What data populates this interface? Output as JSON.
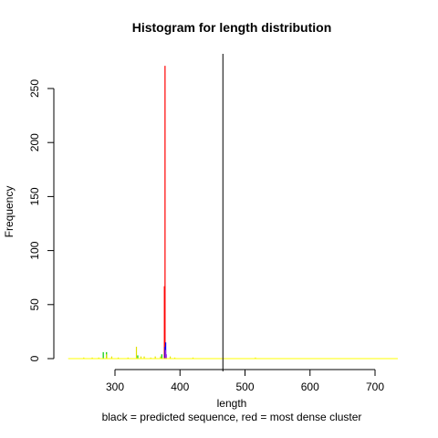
{
  "chart_data": {
    "type": "bar",
    "title": "Histogram for length distribution",
    "xlabel": "length",
    "subtitle": "black = predicted sequence, red = most dense cluster",
    "ylabel": "Frequency",
    "xlim": [
      225,
      735
    ],
    "ylim": [
      0,
      265
    ],
    "x_ticks": [
      300,
      400,
      500,
      600,
      700
    ],
    "y_ticks": [
      0,
      50,
      100,
      150,
      200,
      250
    ],
    "predicted_sequence_length": 466,
    "series": [
      {
        "color": "#ff0000",
        "points": [
          {
            "x": 377,
            "y": 271
          },
          {
            "x": 376,
            "y": 67
          }
        ]
      },
      {
        "color": "#0000ff",
        "points": [
          {
            "x": 378,
            "y": 15
          },
          {
            "x": 377,
            "y": 11
          }
        ]
      },
      {
        "color": "#a020f0",
        "points": [
          {
            "x": 378,
            "y": 8
          },
          {
            "x": 379,
            "y": 4
          }
        ]
      },
      {
        "color": "#00cc00",
        "points": [
          {
            "x": 282,
            "y": 6
          },
          {
            "x": 287,
            "y": 6
          },
          {
            "x": 372,
            "y": 4
          },
          {
            "x": 335,
            "y": 3
          }
        ]
      },
      {
        "color": "#e0e000",
        "points": [
          {
            "x": 333,
            "y": 11
          },
          {
            "x": 287,
            "y": 4
          },
          {
            "x": 370,
            "y": 2
          },
          {
            "x": 345,
            "y": 2
          },
          {
            "x": 252,
            "y": 1
          },
          {
            "x": 265,
            "y": 1
          },
          {
            "x": 275,
            "y": 1
          },
          {
            "x": 295,
            "y": 2
          },
          {
            "x": 305,
            "y": 1
          },
          {
            "x": 320,
            "y": 1
          },
          {
            "x": 340,
            "y": 2
          },
          {
            "x": 355,
            "y": 1
          },
          {
            "x": 362,
            "y": 2
          },
          {
            "x": 385,
            "y": 2
          },
          {
            "x": 392,
            "y": 1
          },
          {
            "x": 420,
            "y": 1
          },
          {
            "x": 516,
            "y": 1
          }
        ]
      }
    ],
    "baseline_color": "#ffff00",
    "baseline_range": [
      228,
      735
    ]
  }
}
